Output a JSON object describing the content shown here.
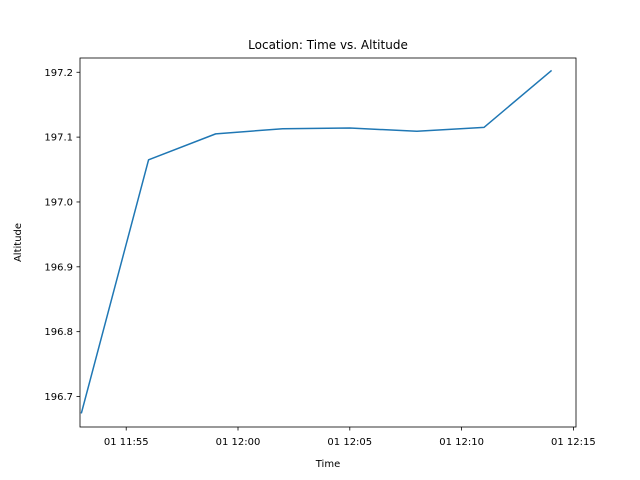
{
  "chart_data": {
    "type": "line",
    "title": "Location: Time vs. Altitude",
    "xlabel": "Time",
    "ylabel": "Altitude",
    "xlim": [
      "11:52:56",
      "12:15:07"
    ],
    "ylim": [
      196.653,
      197.222
    ],
    "x_ticks": [
      {
        "value": "11:55",
        "label": "01 11:55"
      },
      {
        "value": "12:00",
        "label": "01 12:00"
      },
      {
        "value": "12:05",
        "label": "01 12:05"
      },
      {
        "value": "12:10",
        "label": "01 12:10"
      },
      {
        "value": "12:15",
        "label": "01 12:15"
      }
    ],
    "y_ticks": [
      {
        "value": 196.7,
        "label": "196.7"
      },
      {
        "value": 196.8,
        "label": "196.8"
      },
      {
        "value": 196.9,
        "label": "196.9"
      },
      {
        "value": 197.0,
        "label": "197.0"
      },
      {
        "value": 197.1,
        "label": "197.1"
      },
      {
        "value": 197.2,
        "label": "197.2"
      }
    ],
    "grid": false,
    "series": [
      {
        "color": "#1f77b4",
        "x": [
          "11:53:00",
          "11:56:00",
          "11:59:00",
          "12:02:00",
          "12:05:00",
          "12:08:00",
          "12:11:00",
          "12:14:00"
        ],
        "values": [
          196.675,
          197.065,
          197.105,
          197.113,
          197.114,
          197.109,
          197.115,
          197.202
        ]
      }
    ]
  }
}
